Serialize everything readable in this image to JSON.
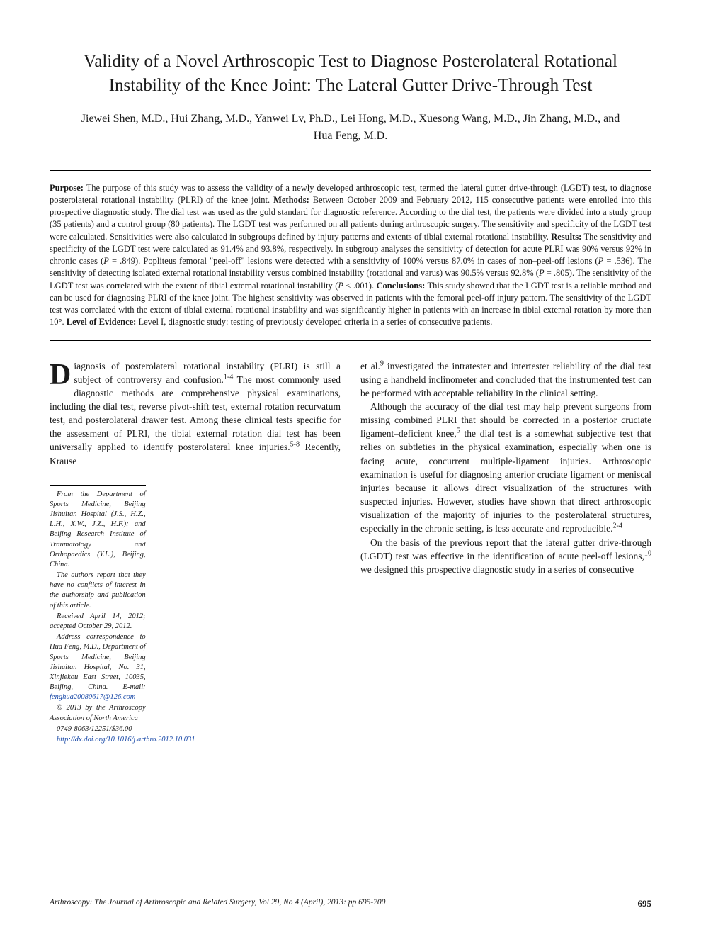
{
  "title": "Validity of a Novel Arthroscopic Test to Diagnose Posterolateral Rotational Instability of the Knee Joint: The Lateral Gutter Drive-Through Test",
  "authors": "Jiewei Shen, M.D., Hui Zhang, M.D., Yanwei Lv, Ph.D., Lei Hong, M.D., Xuesong Wang, M.D., Jin Zhang, M.D., and Hua Feng, M.D.",
  "abstract": {
    "purpose_label": "Purpose:",
    "purpose": " The purpose of this study was to assess the validity of a newly developed arthroscopic test, termed the lateral gutter drive-through (LGDT) test, to diagnose posterolateral rotational instability (PLRI) of the knee joint. ",
    "methods_label": "Methods:",
    "methods": " Between October 2009 and February 2012, 115 consecutive patients were enrolled into this prospective diagnostic study. The dial test was used as the gold standard for diagnostic reference. According to the dial test, the patients were divided into a study group (35 patients) and a control group (80 patients). The LGDT test was performed on all patients during arthroscopic surgery. The sensitivity and specificity of the LGDT test were calculated. Sensitivities were also calculated in subgroups defined by injury patterns and extents of tibial external rotational instability. ",
    "results_label": "Results:",
    "results_a": " The sensitivity and specificity of the LGDT test were calculated as 91.4% and 93.8%, respectively. In subgroup analyses the sensitivity of detection for acute PLRI was 90% versus 92% in chronic cases (",
    "p1": "P",
    "p1_val": " = .849). Popliteus femoral \"peel-off\" lesions were detected with a sensitivity of 100% versus 87.0% in cases of non–peel-off lesions (",
    "p2": "P",
    "p2_val": " = .536). The sensitivity of detecting isolated external rotational instability versus combined instability (rotational and varus) was 90.5% versus 92.8% (",
    "p3": "P",
    "p3_val": " = .805). The sensitivity of the LGDT test was correlated with the extent of tibial external rotational instability (",
    "p4": "P",
    "p4_val": " < .001). ",
    "conclusions_label": "Conclusions:",
    "conclusions": " This study showed that the LGDT test is a reliable method and can be used for diagnosing PLRI of the knee joint. The highest sensitivity was observed in patients with the femoral peel-off injury pattern. The sensitivity of the LGDT test was correlated with the extent of tibial external rotational instability and was significantly higher in patients with an increase in tibial external rotation by more than 10°. ",
    "loe_label": "Level of Evidence:",
    "loe": " Level I, diagnostic study: testing of previously developed criteria in a series of consecutive patients."
  },
  "body": {
    "left_p1_a": "iagnosis of posterolateral rotational instability (PLRI) is still a subject of controversy and confusion.",
    "left_p1_sup": "1-4",
    "left_p1_b": " The most commonly used diagnostic methods are comprehensive physical examinations, including the dial test, reverse pivot-shift test, external rotation recurvatum test, and posterolateral drawer test. Among these clinical tests specific for the assessment of PLRI, the tibial external rotation dial test has been universally applied to identify posterolateral knee injuries.",
    "left_p1_sup2": "5-8",
    "left_p1_c": " Recently, Krause",
    "right_p1_a": "et al.",
    "right_p1_sup": "9",
    "right_p1_b": " investigated the intratester and intertester reliability of the dial test using a handheld inclinometer and concluded that the instrumented test can be performed with acceptable reliability in the clinical setting.",
    "right_p2_a": "Although the accuracy of the dial test may help prevent surgeons from missing combined PLRI that should be corrected in a posterior cruciate ligament–deficient knee,",
    "right_p2_sup": "5",
    "right_p2_b": " the dial test is a somewhat subjective test that relies on subtleties in the physical examination, especially when one is facing acute, concurrent multiple-ligament injuries. Arthroscopic examination is useful for diagnosing anterior cruciate ligament or meniscal injuries because it allows direct visualization of the structures with suspected injuries. However, studies have shown that direct arthroscopic visualization of the majority of injuries to the posterolateral structures, especially in the chronic setting, is less accurate and reproducible.",
    "right_p2_sup2": "2-4",
    "right_p3_a": "On the basis of the previous report that the lateral gutter drive-through (LGDT) test was effective in the identification of acute peel-off lesions,",
    "right_p3_sup": "10",
    "right_p3_b": " we designed this prospective diagnostic study in a series of consecutive"
  },
  "footnotes": {
    "f1": "From the Department of Sports Medicine, Beijing Jishuitan Hospital (J.S., H.Z., L.H., X.W., J.Z., H.F.); and Beijing Research Institute of Traumatology and Orthopaedics (Y.L.), Beijing, China.",
    "f2": "The authors report that they have no conflicts of interest in the authorship and publication of this article.",
    "f3": "Received April 14, 2012; accepted October 29, 2012.",
    "f4": "Address correspondence to Hua Feng, M.D., Department of Sports Medicine, Beijing Jishuitan Hospital, No. 31, Xinjiekou East Street, 10035, Beijing, China. E-mail: ",
    "f4_link": "fenghua20080617@126.com",
    "f5": "© 2013 by the Arthroscopy Association of North America",
    "f6": "0749-8063/12251/$36.00",
    "f7": "http://dx.doi.org/10.1016/j.arthro.2012.10.031"
  },
  "footer": {
    "journal": "Arthroscopy: The Journal of Arthroscopic and Related Surgery, Vol 29, No 4 (April), 2013: pp 695-700",
    "page": "695"
  },
  "colors": {
    "text": "#1a1a1a",
    "link": "#1a4aa8",
    "rule": "#000000",
    "background": "#ffffff"
  },
  "typography": {
    "title_fontsize": 25,
    "authors_fontsize": 16,
    "abstract_fontsize": 12.5,
    "body_fontsize": 13.5,
    "footnote_fontsize": 10.5,
    "footer_fontsize": 11.5,
    "dropcap_fontsize": 42
  }
}
